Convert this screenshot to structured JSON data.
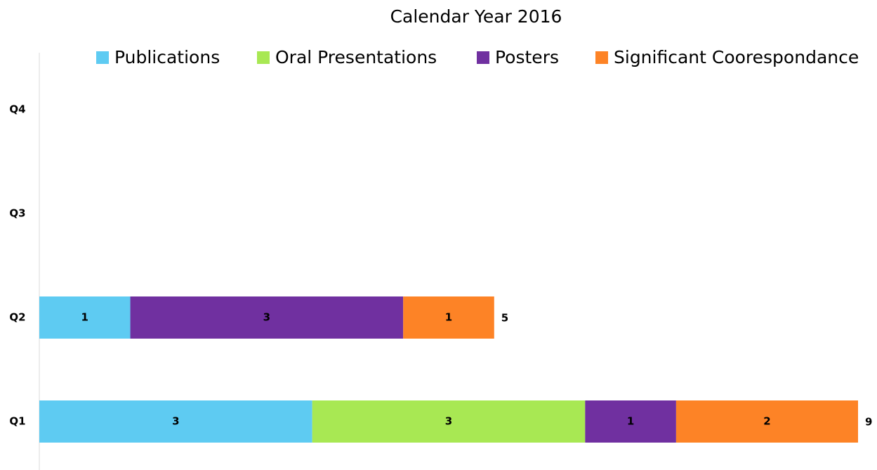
{
  "chart_data": {
    "type": "stacked-bar-horizontal",
    "title": "Calendar Year 2016",
    "categories": [
      "Q1",
      "Q2",
      "Q3",
      "Q4"
    ],
    "series": [
      {
        "name": "Publications",
        "color": "#5ecbf2",
        "values": [
          3,
          1,
          null,
          null
        ]
      },
      {
        "name": "Oral Presentations",
        "color": "#a8e853",
        "values": [
          3,
          null,
          null,
          null
        ]
      },
      {
        "name": "Posters",
        "color": "#7030a0",
        "values": [
          1,
          3,
          null,
          null
        ]
      },
      {
        "name": "Significant Coorespondance",
        "color": "#fd8326",
        "values": [
          2,
          1,
          null,
          null
        ]
      }
    ],
    "totals": [
      9,
      5,
      null,
      null
    ],
    "xlim": [
      0,
      9
    ],
    "legend": "top"
  }
}
